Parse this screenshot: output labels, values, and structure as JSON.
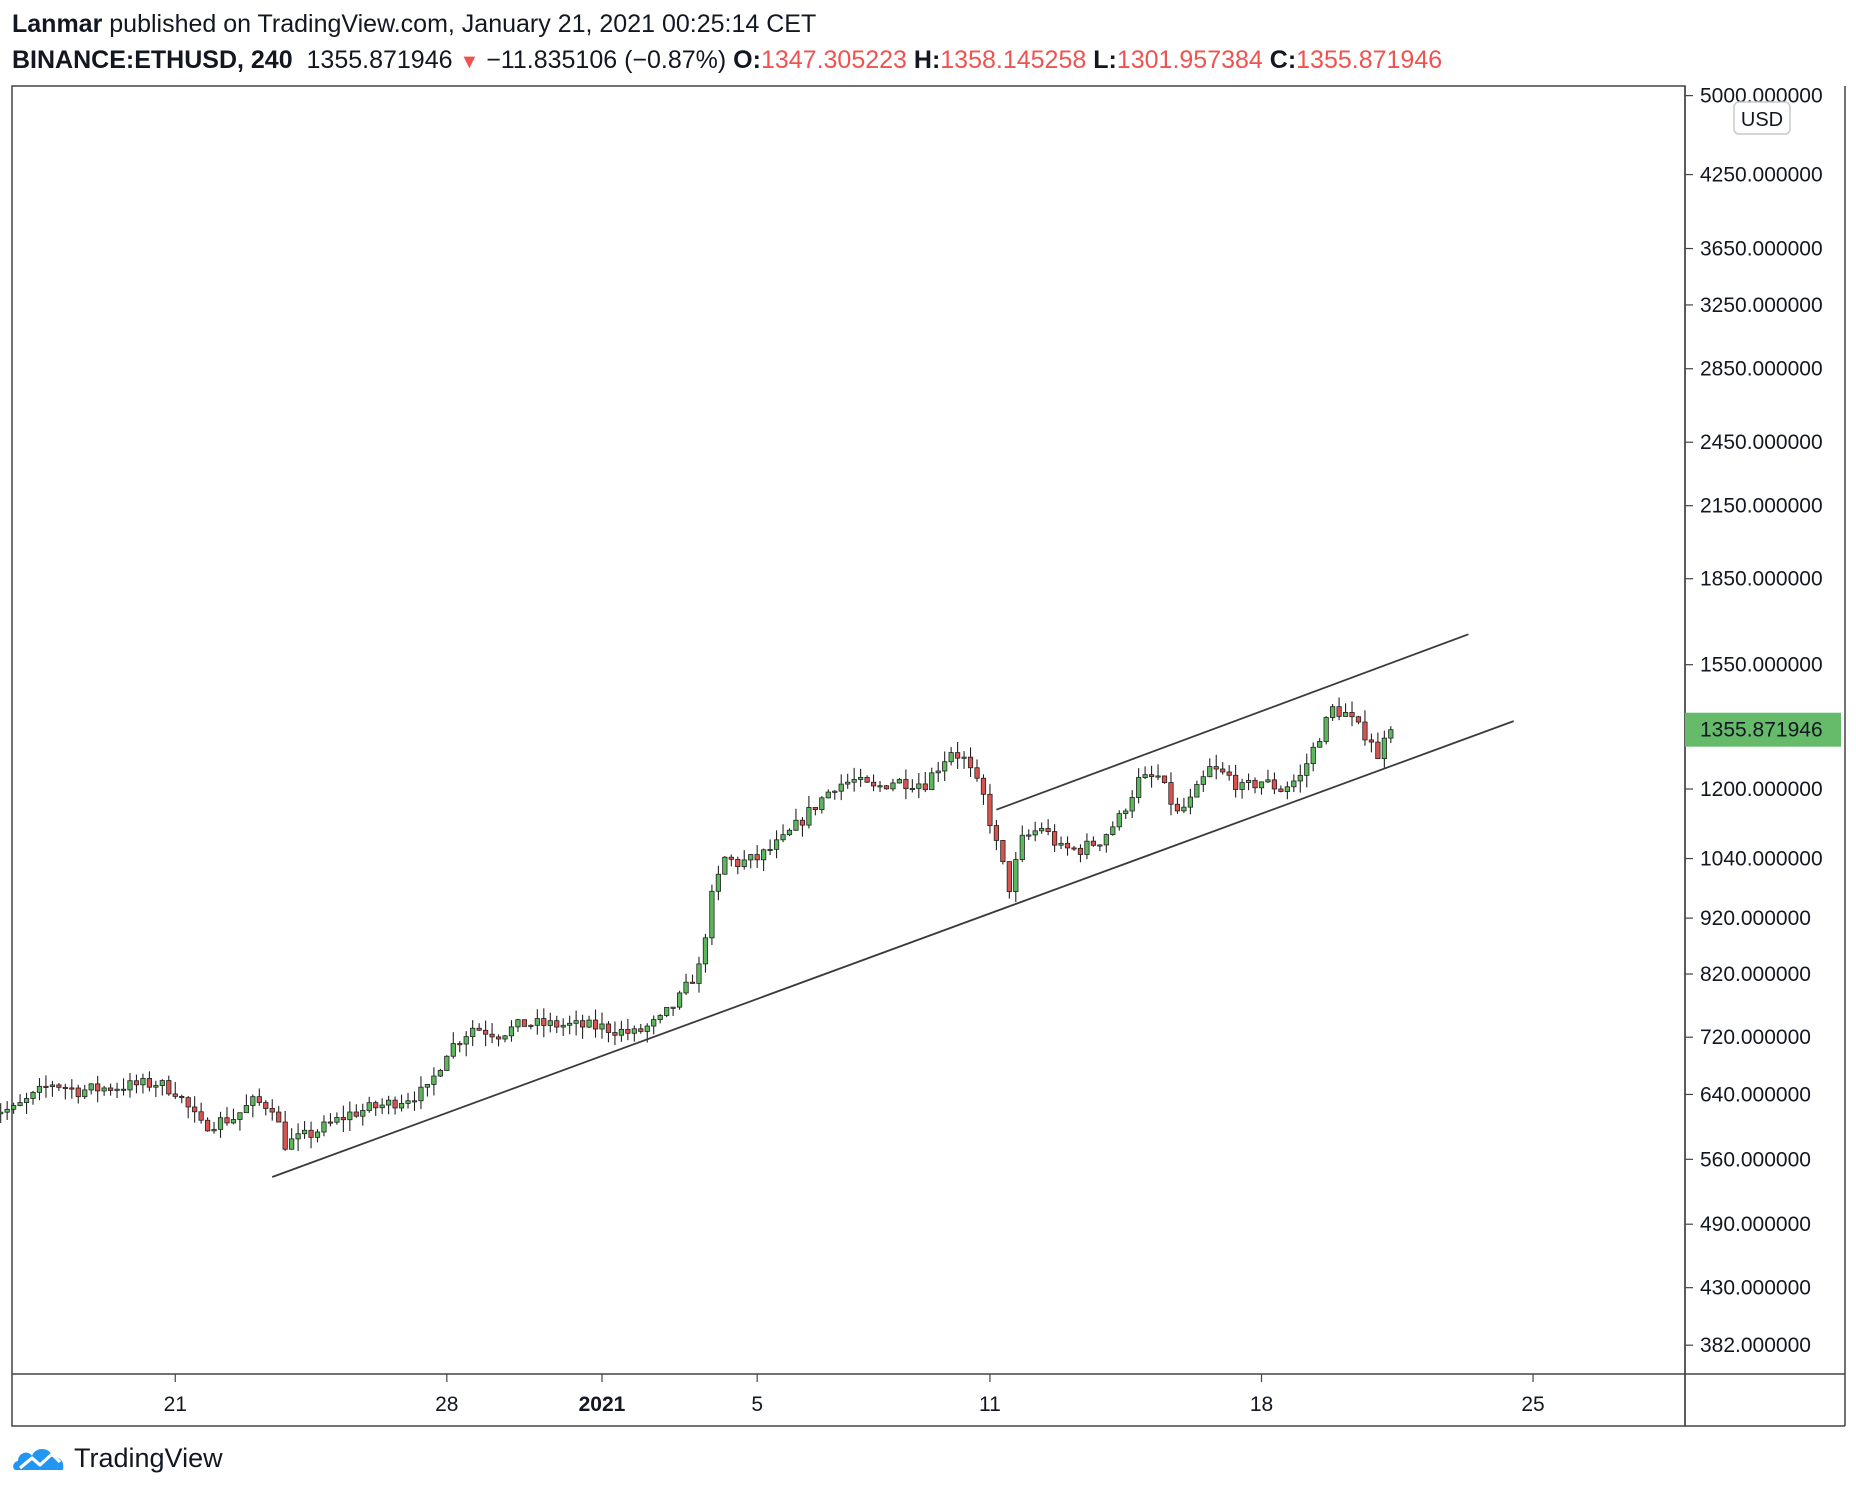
{
  "header": {
    "author": "Lanmar",
    "published_text": "published on TradingView.com, January 21, 2021 00:25:14 CET",
    "symbol": "BINANCE:ETHUSD, 240",
    "last": "1355.871946",
    "change": "−11.835106 (−0.87%)",
    "o_label": "O:",
    "o_value": "1347.305223",
    "h_label": "H:",
    "h_value": "1358.145258",
    "l_label": "L:",
    "l_value": "1301.957384",
    "c_label": "C:",
    "c_value": "1355.871946"
  },
  "currency_badge": "USD",
  "footer": {
    "brand": "TradingView"
  },
  "colors": {
    "up": "#5cb85c",
    "down": "#d9534f",
    "price_tag": "#66bb6a",
    "header_red": "#ef5350"
  },
  "chart_data": {
    "type": "candlestick",
    "symbol": "BINANCE:ETHUSD",
    "interval": "240",
    "y_scale": "log",
    "ylim": [
      360,
      5100
    ],
    "y_ticks": [
      382,
      430,
      490,
      560,
      640,
      720,
      820,
      920,
      1040,
      1200,
      1550,
      1850,
      2150,
      2450,
      2850,
      3250,
      3650,
      4250,
      5000
    ],
    "y_tick_labels": [
      "382.000000",
      "430.000000",
      "490.000000",
      "560.000000",
      "640.000000",
      "720.000000",
      "820.000000",
      "920.000000",
      "1040.000000",
      "1200.000000",
      "1550.000000",
      "1850.000000",
      "2150.000000",
      "2450.000000",
      "2850.000000",
      "3250.000000",
      "3650.000000",
      "4250.000000",
      "5000.000000"
    ],
    "x_range": [
      "2020-12-16T19:00",
      "2021-01-28T22:00"
    ],
    "x_ticks": [
      {
        "label": "21",
        "date": "2020-12-21T00:00",
        "bold": false
      },
      {
        "label": "28",
        "date": "2020-12-28T00:00",
        "bold": false
      },
      {
        "label": "2021",
        "date": "2021-01-01T00:00",
        "bold": true
      },
      {
        "label": "5",
        "date": "2021-01-05T00:00",
        "bold": false
      },
      {
        "label": "11",
        "date": "2021-01-11T00:00",
        "bold": false
      },
      {
        "label": "18",
        "date": "2021-01-18T00:00",
        "bold": false
      },
      {
        "label": "25",
        "date": "2021-01-25T00:00",
        "bold": false
      }
    ],
    "last_price": 1355.871946,
    "last_price_label": "1355.871946",
    "close_series": [
      {
        "t": "2020-12-16T20:00",
        "c": 620
      },
      {
        "t": "2020-12-17T20:00",
        "c": 655
      },
      {
        "t": "2020-12-18T12:00",
        "c": 645
      },
      {
        "t": "2020-12-19T12:00",
        "c": 650
      },
      {
        "t": "2020-12-20T12:00",
        "c": 655
      },
      {
        "t": "2020-12-21T00:00",
        "c": 645
      },
      {
        "t": "2020-12-21T16:00",
        "c": 600
      },
      {
        "t": "2020-12-22T12:00",
        "c": 610
      },
      {
        "t": "2020-12-23T00:00",
        "c": 630
      },
      {
        "t": "2020-12-23T12:00",
        "c": 625
      },
      {
        "t": "2020-12-23T20:00",
        "c": 578
      },
      {
        "t": "2020-12-24T12:00",
        "c": 590
      },
      {
        "t": "2020-12-25T12:00",
        "c": 615
      },
      {
        "t": "2020-12-26T12:00",
        "c": 628
      },
      {
        "t": "2020-12-27T12:00",
        "c": 645
      },
      {
        "t": "2020-12-28T00:00",
        "c": 700
      },
      {
        "t": "2020-12-28T16:00",
        "c": 735
      },
      {
        "t": "2020-12-29T08:00",
        "c": 725
      },
      {
        "t": "2020-12-30T00:00",
        "c": 740
      },
      {
        "t": "2020-12-31T00:00",
        "c": 738
      },
      {
        "t": "2021-01-01T00:00",
        "c": 735
      },
      {
        "t": "2021-01-01T20:00",
        "c": 725
      },
      {
        "t": "2021-01-02T12:00",
        "c": 745
      },
      {
        "t": "2021-01-03T00:00",
        "c": 780
      },
      {
        "t": "2021-01-03T12:00",
        "c": 830
      },
      {
        "t": "2021-01-03T20:00",
        "c": 960
      },
      {
        "t": "2021-01-04T04:00",
        "c": 1040
      },
      {
        "t": "2021-01-04T12:00",
        "c": 1030
      },
      {
        "t": "2021-01-05T00:00",
        "c": 1040
      },
      {
        "t": "2021-01-05T16:00",
        "c": 1080
      },
      {
        "t": "2021-01-06T12:00",
        "c": 1160
      },
      {
        "t": "2021-01-07T00:00",
        "c": 1210
      },
      {
        "t": "2021-01-07T12:00",
        "c": 1220
      },
      {
        "t": "2021-01-08T00:00",
        "c": 1200
      },
      {
        "t": "2021-01-08T12:00",
        "c": 1220
      },
      {
        "t": "2021-01-09T08:00",
        "c": 1215
      },
      {
        "t": "2021-01-10T00:00",
        "c": 1300
      },
      {
        "t": "2021-01-10T08:00",
        "c": 1275
      },
      {
        "t": "2021-01-10T20:00",
        "c": 1180
      },
      {
        "t": "2021-01-11T04:00",
        "c": 1070
      },
      {
        "t": "2021-01-11T12:00",
        "c": 980
      },
      {
        "t": "2021-01-11T20:00",
        "c": 1080
      },
      {
        "t": "2021-01-12T08:00",
        "c": 1110
      },
      {
        "t": "2021-01-12T20:00",
        "c": 1060
      },
      {
        "t": "2021-01-13T08:00",
        "c": 1060
      },
      {
        "t": "2021-01-13T20:00",
        "c": 1080
      },
      {
        "t": "2021-01-14T08:00",
        "c": 1130
      },
      {
        "t": "2021-01-14T20:00",
        "c": 1220
      },
      {
        "t": "2021-01-15T08:00",
        "c": 1230
      },
      {
        "t": "2021-01-15T20:00",
        "c": 1140
      },
      {
        "t": "2021-01-16T04:00",
        "c": 1170
      },
      {
        "t": "2021-01-16T16:00",
        "c": 1250
      },
      {
        "t": "2021-01-17T04:00",
        "c": 1230
      },
      {
        "t": "2021-01-17T12:00",
        "c": 1200
      },
      {
        "t": "2021-01-18T00:00",
        "c": 1220
      },
      {
        "t": "2021-01-18T12:00",
        "c": 1200
      },
      {
        "t": "2021-01-19T00:00",
        "c": 1230
      },
      {
        "t": "2021-01-19T12:00",
        "c": 1340
      },
      {
        "t": "2021-01-19T20:00",
        "c": 1415
      },
      {
        "t": "2021-01-20T04:00",
        "c": 1400
      },
      {
        "t": "2021-01-20T12:00",
        "c": 1360
      },
      {
        "t": "2021-01-20T20:00",
        "c": 1330
      },
      {
        "t": "2021-01-21T00:00",
        "c": 1270
      },
      {
        "t": "2021-01-21T04:00",
        "c": 1347
      },
      {
        "t": "2021-01-21T08:00",
        "c": 1356
      }
    ],
    "trendlines": [
      {
        "name": "lower-channel-line",
        "from": {
          "t": "2020-12-23T12:00",
          "price": 540
        },
        "to": {
          "t": "2021-01-24T12:00",
          "price": 1380
        }
      },
      {
        "name": "upper-channel-line",
        "from": {
          "t": "2021-01-11T04:00",
          "price": 1150
        },
        "to": {
          "t": "2021-01-23T08:00",
          "price": 1650
        }
      }
    ]
  }
}
